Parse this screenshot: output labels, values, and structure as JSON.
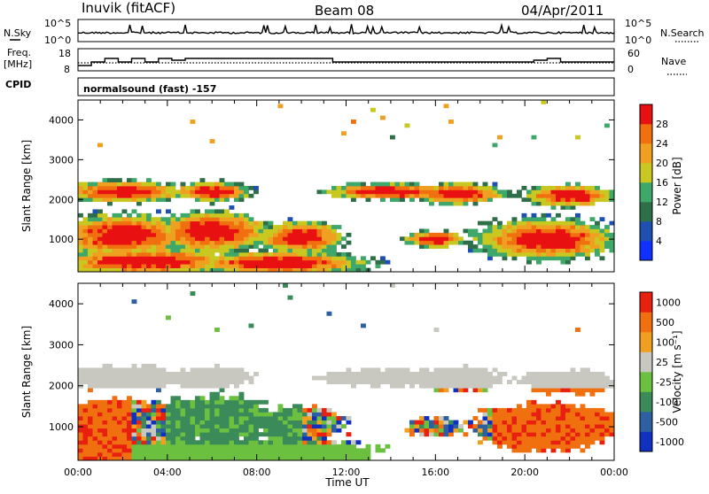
{
  "header": {
    "site": "Inuvik (fitACF)",
    "beam": "Beam 08",
    "date": "04/Apr/2011"
  },
  "noise_panel": {
    "left_label": "N.Sky",
    "right_label": "N.Search",
    "left_ticks": [
      "10^5",
      "10^0"
    ],
    "right_ticks": [
      "10^5",
      "10^0"
    ]
  },
  "freq_panel": {
    "left_label_line1": "Freq.",
    "left_label_line2": "[MHz]",
    "right_label": "Nave",
    "left_ticks": [
      "18",
      "8"
    ],
    "right_ticks": [
      "60",
      "0"
    ]
  },
  "cpid": {
    "label": "CPID",
    "text": "normalsound (fast) -157"
  },
  "chart_data": [
    {
      "type": "heatmap",
      "name": "power",
      "ylabel": "Slant Range [km]",
      "xlabel": "Time UT",
      "ylim": [
        180,
        4500
      ],
      "y_ticks": [
        "1000",
        "2000",
        "3000",
        "4000"
      ],
      "x_ticks": [
        "00:00",
        "04:00",
        "08:00",
        "12:00",
        "16:00",
        "20:00",
        "00:00"
      ],
      "colorbar": {
        "label": "Power [dB]",
        "ticks": [
          "4",
          "8",
          "12",
          "16",
          "20",
          "24",
          "28"
        ],
        "colors": [
          "#1030ff",
          "#1f4fb0",
          "#2e6f4a",
          "#3ea86a",
          "#c8c820",
          "#f0a020",
          "#f07010",
          "#e81010"
        ]
      }
    },
    {
      "type": "heatmap",
      "name": "velocity",
      "ylabel": "Slant Range [km]",
      "xlabel": "Time UT",
      "ylim": [
        180,
        4500
      ],
      "y_ticks": [
        "1000",
        "2000",
        "3000",
        "4000"
      ],
      "x_ticks": [
        "00:00",
        "04:00",
        "08:00",
        "12:00",
        "16:00",
        "20:00",
        "00:00"
      ],
      "colorbar": {
        "label": "Velocity [m s⁻¹]",
        "ticks": [
          "1000",
          "500",
          "100",
          "25",
          "-25",
          "-100",
          "-500",
          "-1000"
        ],
        "colors": [
          "#1030c0",
          "#2e5fa0",
          "#3a8a5a",
          "#6cc040",
          "#c8c8c0",
          "#f0a020",
          "#f07010",
          "#e82010"
        ]
      }
    }
  ]
}
